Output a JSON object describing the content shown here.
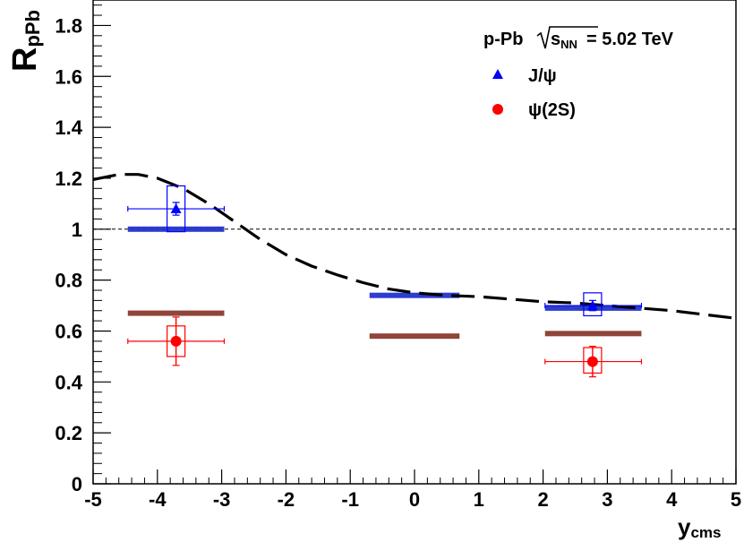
{
  "chart_data": {
    "type": "scatter",
    "title": "",
    "xlabel": "y",
    "xlabel_sub": "cms",
    "ylabel": "R",
    "ylabel_sub": "pPb",
    "xlim": [
      -5,
      5
    ],
    "ylim": [
      0,
      1.9
    ],
    "x_ticks": [
      "-5",
      "-4",
      "-3",
      "-2",
      "-1",
      "0",
      "1",
      "2",
      "3",
      "4",
      "5"
    ],
    "y_ticks": [
      "0",
      "0.2",
      "0.4",
      "0.6",
      "0.8",
      "1",
      "1.2",
      "1.4",
      "1.6",
      "1.8"
    ],
    "reference_line": 1.0,
    "legend": {
      "header_prefix": "p-Pb",
      "header_sqrt": "s",
      "header_sub": "NN",
      "header_value": "= 5.02 TeV",
      "entries": [
        "J/ψ",
        "ψ(2S)"
      ],
      "position": "top-right"
    },
    "series": [
      {
        "name": "J/ψ",
        "marker": "triangle",
        "color": "#0000ff",
        "points": [
          {
            "x": -3.71,
            "y": 1.08,
            "xerr_low": -4.46,
            "xerr_high": -2.96,
            "yerr": 0.025,
            "syst_low": 0.99,
            "syst_high": 1.17
          },
          {
            "x": 2.77,
            "y": 0.7,
            "xerr_low": 2.03,
            "xerr_high": 3.53,
            "yerr": 0.02,
            "syst_low": 0.66,
            "syst_high": 0.75
          }
        ],
        "global_band": [
          {
            "x_range": [
              -4.46,
              -2.96
            ],
            "y": 1.0
          },
          {
            "x_range": [
              -0.7,
              0.7
            ],
            "y": 0.74
          },
          {
            "x_range": [
              2.03,
              3.53
            ],
            "y": 0.69
          }
        ]
      },
      {
        "name": "ψ(2S)",
        "marker": "circle",
        "color": "#ff0000",
        "points": [
          {
            "x": -3.71,
            "y": 0.56,
            "xerr_low": -4.46,
            "xerr_high": -2.96,
            "yerr": 0.095,
            "syst_low": 0.5,
            "syst_high": 0.62
          },
          {
            "x": 2.77,
            "y": 0.48,
            "xerr_low": 2.03,
            "xerr_high": 3.53,
            "yerr": 0.06,
            "syst_low": 0.435,
            "syst_high": 0.535
          }
        ],
        "global_band": [
          {
            "x_range": [
              -4.46,
              -2.96
            ],
            "y": 0.67
          },
          {
            "x_range": [
              -0.7,
              0.7
            ],
            "y": 0.58
          },
          {
            "x_range": [
              2.03,
              3.53
            ],
            "y": 0.59
          }
        ]
      }
    ],
    "model_curve": {
      "style": "dashed",
      "color": "#000000",
      "x": [
        -5,
        -4.6,
        -4.3,
        -4.0,
        -3.6,
        -3.2,
        -2.8,
        -2.4,
        -2.0,
        -1.6,
        -1.2,
        -0.8,
        -0.4,
        0,
        0.5,
        1.0,
        1.5,
        2.0,
        2.5,
        3.0,
        3.5,
        4.0,
        4.5,
        5.0
      ],
      "y": [
        1.195,
        1.215,
        1.215,
        1.2,
        1.16,
        1.1,
        1.03,
        0.96,
        0.9,
        0.855,
        0.82,
        0.79,
        0.765,
        0.75,
        0.74,
        0.735,
        0.725,
        0.715,
        0.71,
        0.7,
        0.69,
        0.68,
        0.665,
        0.65
      ]
    }
  }
}
